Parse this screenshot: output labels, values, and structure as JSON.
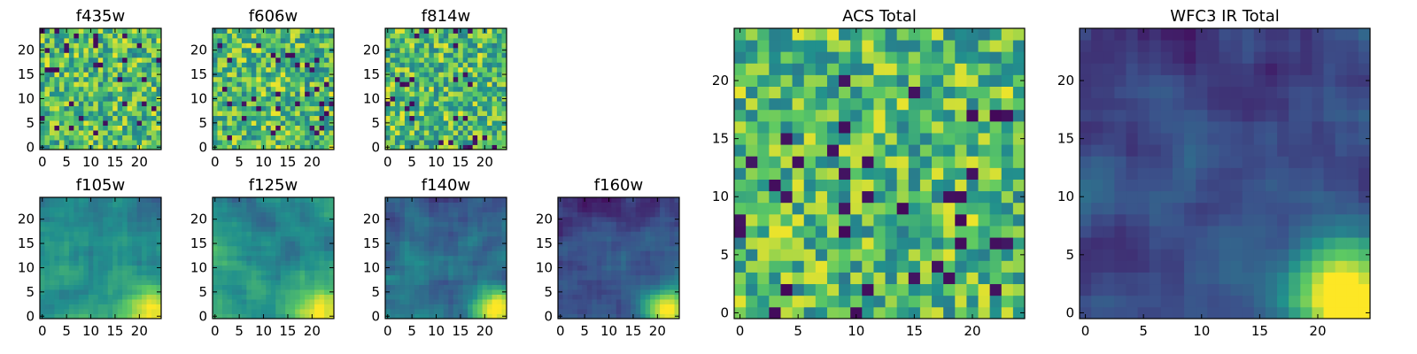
{
  "chart_data": {
    "type": "heatmap",
    "colormap": [
      "#440154",
      "#3b528b",
      "#21908d",
      "#5dc963",
      "#fde725"
    ],
    "panels": [
      {
        "id": "f435w",
        "title": "f435w",
        "xticks": [
          0,
          5,
          10,
          15,
          20
        ],
        "yticks": [
          0,
          5,
          10,
          15,
          20
        ],
        "grid_size": [
          25,
          25
        ],
        "value_range": [
          0,
          1
        ],
        "pattern": "noise_high"
      },
      {
        "id": "f606w",
        "title": "f606w",
        "xticks": [
          0,
          5,
          10,
          15,
          20
        ],
        "yticks": [
          0,
          5,
          10,
          15,
          20
        ],
        "grid_size": [
          25,
          25
        ],
        "value_range": [
          0,
          1
        ],
        "pattern": "noise_high"
      },
      {
        "id": "f814w",
        "title": "f814w",
        "xticks": [
          0,
          5,
          10,
          15,
          20
        ],
        "yticks": [
          0,
          5,
          10,
          15,
          20
        ],
        "grid_size": [
          25,
          25
        ],
        "value_range": [
          0,
          1
        ],
        "pattern": "noise_high"
      },
      {
        "id": "f105w",
        "title": "f105w",
        "xticks": [
          0,
          5,
          10,
          15,
          20
        ],
        "yticks": [
          0,
          5,
          10,
          15,
          20
        ],
        "grid_size": [
          25,
          25
        ],
        "value_range": [
          0,
          1
        ],
        "pattern": "smooth_mid_bright_corner"
      },
      {
        "id": "f125w",
        "title": "f125w",
        "xticks": [
          0,
          5,
          10,
          15,
          20
        ],
        "yticks": [
          0,
          5,
          10,
          15,
          20
        ],
        "grid_size": [
          25,
          25
        ],
        "value_range": [
          0,
          1
        ],
        "pattern": "smooth_mid_bright_corner"
      },
      {
        "id": "f140w",
        "title": "f140w",
        "xticks": [
          0,
          5,
          10,
          15,
          20
        ],
        "yticks": [
          0,
          5,
          10,
          15,
          20
        ],
        "grid_size": [
          25,
          25
        ],
        "value_range": [
          0,
          1
        ],
        "pattern": "smooth_low_bright_corner"
      },
      {
        "id": "f160w",
        "title": "f160w",
        "xticks": [
          0,
          5,
          10,
          15,
          20
        ],
        "yticks": [
          0,
          5,
          10,
          15,
          20
        ],
        "grid_size": [
          25,
          25
        ],
        "value_range": [
          0,
          1
        ],
        "pattern": "smooth_dark_bright_corner"
      },
      {
        "id": "acs-total",
        "title": "ACS Total",
        "xticks": [
          0,
          5,
          10,
          15,
          20
        ],
        "yticks": [
          0,
          5,
          10,
          15,
          20
        ],
        "grid_size": [
          25,
          25
        ],
        "value_range": [
          0,
          1
        ],
        "pattern": "noise_high"
      },
      {
        "id": "wfc3-ir-total",
        "title": "WFC3 IR Total",
        "xticks": [
          0,
          5,
          10,
          15,
          20
        ],
        "yticks": [
          0,
          5,
          10,
          15,
          20
        ],
        "grid_size": [
          25,
          25
        ],
        "value_range": [
          0,
          1
        ],
        "pattern": "smooth_dark_bright_corner"
      }
    ]
  }
}
